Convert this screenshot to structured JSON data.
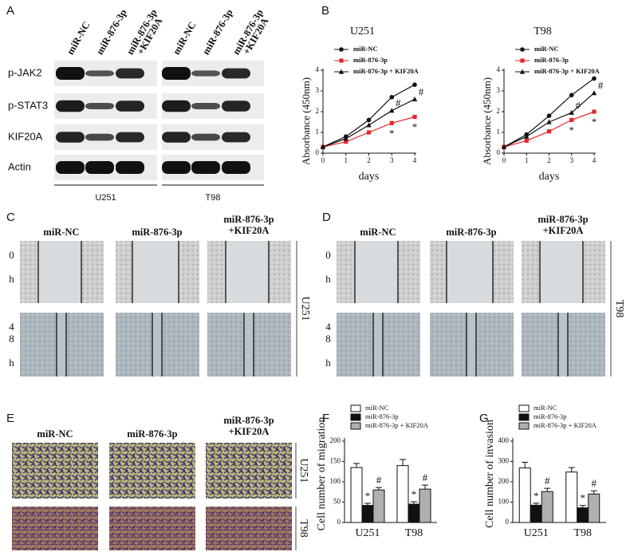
{
  "panel_labels": [
    "A",
    "B",
    "C",
    "D",
    "E",
    "F",
    "G"
  ],
  "blot": {
    "lanes": [
      [
        "miR-NC"
      ],
      [
        "miR-876-3p"
      ],
      [
        "miR-876-3p",
        "+KIF20A"
      ]
    ],
    "rows": [
      "p-JAK2",
      "p-STAT3",
      "KIF20A",
      "Actin"
    ],
    "cells": [
      "U251",
      "T98"
    ]
  },
  "wound_c": {
    "headers": [
      [
        "miR-NC"
      ],
      [
        "miR-876-3p"
      ],
      [
        "miR-876-3p",
        "+KIF20A"
      ]
    ],
    "rows": [
      "0 h",
      "48 h"
    ],
    "cell": "U251"
  },
  "wound_d": {
    "headers": [
      [
        "miR-NC"
      ],
      [
        "miR-876-3p"
      ],
      [
        "miR-876-3p",
        "+KIF20A"
      ]
    ],
    "rows": [
      "0 h",
      "48 h"
    ],
    "cell": "T98"
  },
  "transwell_e": {
    "headers": [
      [
        "miR-NC"
      ],
      [
        "miR-876-3p"
      ],
      [
        "miR-876-3p",
        "+KIF20A"
      ]
    ],
    "cells": [
      "U251",
      "T98"
    ]
  },
  "chart_data": [
    {
      "type": "line",
      "title": "U251",
      "xlabel": "days",
      "ylabel": "Absorbance (450nm)",
      "x": [
        0,
        1,
        2,
        3,
        4
      ],
      "xlim": [
        0,
        4
      ],
      "xticks": [
        0,
        1,
        2,
        3,
        4
      ],
      "ylim": [
        0,
        4
      ],
      "yticks": [
        0,
        1,
        2,
        3,
        4
      ],
      "series": [
        {
          "name": "miR-NC",
          "color": "#111111",
          "marker": "circle",
          "values": [
            0.3,
            0.8,
            1.6,
            2.7,
            3.3
          ]
        },
        {
          "name": "miR-876-3p",
          "color": "#e8262b",
          "marker": "square",
          "values": [
            0.3,
            0.55,
            1.0,
            1.45,
            1.75
          ]
        },
        {
          "name": "miR-876-3p + KIF20A",
          "color": "#111111",
          "marker": "triangle",
          "values": [
            0.3,
            0.7,
            1.35,
            2.05,
            2.6
          ]
        }
      ],
      "annotations": [
        {
          "text": "#",
          "series": 2,
          "index": 3
        },
        {
          "text": "#",
          "series": 2,
          "index": 4
        },
        {
          "text": "*",
          "series": 1,
          "index": 3
        },
        {
          "text": "*",
          "series": 1,
          "index": 4
        }
      ]
    },
    {
      "type": "line",
      "title": "T98",
      "xlabel": "days",
      "ylabel": "Absorbance (450nm)",
      "x": [
        0,
        1,
        2,
        3,
        4
      ],
      "xlim": [
        0,
        4
      ],
      "xticks": [
        0,
        1,
        2,
        3,
        4
      ],
      "ylim": [
        0,
        4
      ],
      "yticks": [
        0,
        1,
        2,
        3,
        4
      ],
      "series": [
        {
          "name": "miR-NC",
          "color": "#111111",
          "marker": "circle",
          "values": [
            0.3,
            0.9,
            1.8,
            2.8,
            3.6
          ]
        },
        {
          "name": "miR-876-3p",
          "color": "#e8262b",
          "marker": "square",
          "values": [
            0.3,
            0.6,
            1.05,
            1.6,
            2.0
          ]
        },
        {
          "name": "miR-876-3p + KIF20A",
          "color": "#111111",
          "marker": "triangle",
          "values": [
            0.3,
            0.8,
            1.5,
            1.95,
            2.9
          ]
        }
      ],
      "annotations": [
        {
          "text": "#",
          "series": 2,
          "index": 3
        },
        {
          "text": "#",
          "series": 2,
          "index": 4
        },
        {
          "text": "*",
          "series": 1,
          "index": 3
        },
        {
          "text": "*",
          "series": 1,
          "index": 4
        }
      ]
    },
    {
      "type": "bar",
      "ylabel": "Cell number of migration",
      "categories": [
        "U251",
        "T98"
      ],
      "ylim": [
        0,
        200
      ],
      "yticks": [
        0,
        50,
        100,
        150,
        200
      ],
      "series": [
        {
          "name": "miR-NC",
          "color": "#ffffff",
          "values": [
            135,
            140
          ],
          "errors": [
            10,
            15
          ]
        },
        {
          "name": "miR-876-3p",
          "color": "#111111",
          "values": [
            42,
            45
          ],
          "errors": [
            5,
            6
          ]
        },
        {
          "name": "miR-876-3p + KIF20A",
          "color": "#b0b0b0",
          "values": [
            80,
            82
          ],
          "errors": [
            6,
            10
          ]
        }
      ],
      "annotations": [
        {
          "text": "*",
          "series": 1,
          "index": 0
        },
        {
          "text": "#",
          "series": 2,
          "index": 0
        },
        {
          "text": "*",
          "series": 1,
          "index": 1
        },
        {
          "text": "#",
          "series": 2,
          "index": 1
        }
      ]
    },
    {
      "type": "bar",
      "ylabel": "Cell number of invasion",
      "categories": [
        "U251",
        "T98"
      ],
      "ylim": [
        0,
        400
      ],
      "yticks": [
        0,
        100,
        200,
        300,
        400
      ],
      "series": [
        {
          "name": "miR-NC",
          "color": "#ffffff",
          "values": [
            268,
            248
          ],
          "errors": [
            28,
            22
          ]
        },
        {
          "name": "miR-876-3p",
          "color": "#111111",
          "values": [
            85,
            72
          ],
          "errors": [
            10,
            12
          ]
        },
        {
          "name": "miR-876-3p + KIF20A",
          "color": "#b0b0b0",
          "values": [
            152,
            140
          ],
          "errors": [
            16,
            16
          ]
        }
      ],
      "annotations": [
        {
          "text": "*",
          "series": 1,
          "index": 0
        },
        {
          "text": "#",
          "series": 2,
          "index": 0
        },
        {
          "text": "*",
          "series": 1,
          "index": 1
        },
        {
          "text": "#",
          "series": 2,
          "index": 1
        }
      ]
    }
  ]
}
